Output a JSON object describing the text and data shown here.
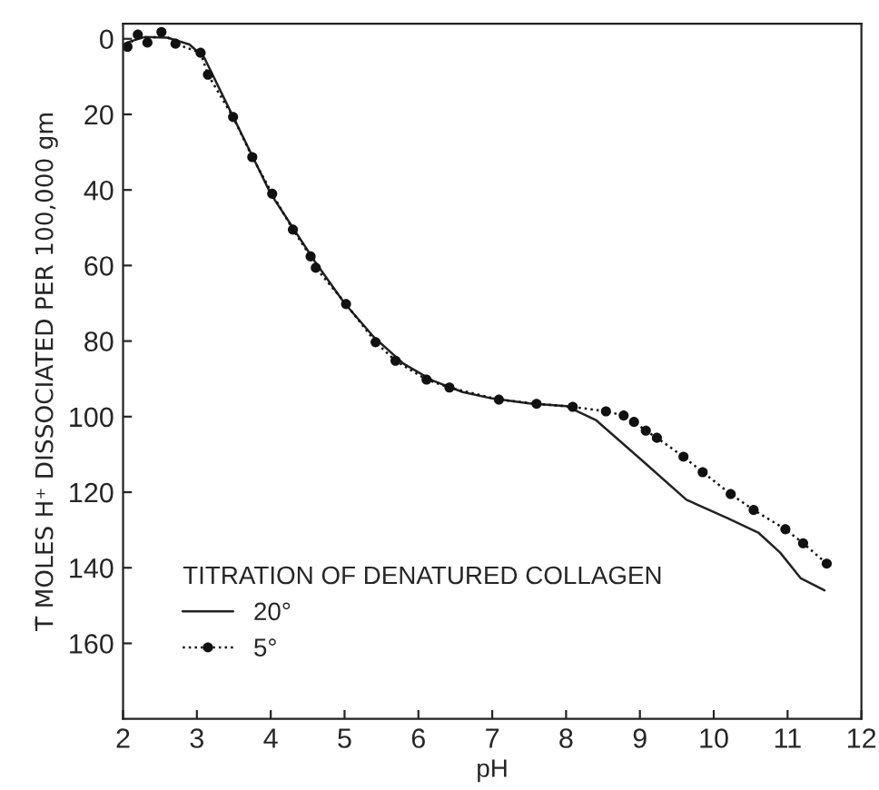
{
  "chart_data": {
    "type": "line",
    "xlabel": "pH",
    "ylabel": "T̄ MOLES H⁺ DISSOCIATED PER 100,000 gm",
    "legend_title": "TITRATION OF DENATURED COLLAGEN",
    "legend": "bottom left",
    "grid": false,
    "xlim": [
      2,
      12
    ],
    "xticks": [
      2,
      3,
      4,
      5,
      6,
      7,
      8,
      9,
      10,
      11,
      12
    ],
    "ylim": [
      180,
      -4
    ],
    "yticks": [
      0,
      20,
      40,
      60,
      80,
      100,
      120,
      140,
      160
    ],
    "series": [
      {
        "name": "20°",
        "color": "#222222",
        "marker": "none",
        "line_style": "solid",
        "x": [
          2.05,
          2.3,
          2.6,
          2.9,
          3.1,
          3.3,
          3.5,
          3.8,
          4.0,
          4.3,
          4.6,
          5.0,
          5.4,
          5.8,
          6.2,
          6.6,
          7.0,
          7.5,
          8.0,
          8.41,
          9.07,
          9.63,
          10.2,
          10.61,
          10.9,
          11.18,
          11.5
        ],
        "values": [
          1,
          -0.5,
          -0.3,
          1.5,
          5,
          13,
          21,
          33,
          41,
          50,
          59,
          70,
          79,
          86,
          90.5,
          93.5,
          95.2,
          96.5,
          97.2,
          101,
          112.3,
          122,
          127,
          130.8,
          136,
          142.8,
          146
        ]
      },
      {
        "name": "5°",
        "color": "#111111",
        "marker": "circle",
        "line_style": "dotted",
        "x": [
          2.06,
          2.2,
          2.33,
          2.52,
          2.71,
          3.05,
          3.15,
          3.49,
          3.75,
          4.02,
          4.3,
          4.54,
          4.61,
          5.02,
          5.42,
          5.69,
          6.11,
          6.42,
          7.09,
          7.6,
          8.09,
          8.54,
          8.78,
          8.92,
          9.08,
          9.23,
          9.59,
          9.85,
          10.23,
          10.54,
          10.97,
          11.21,
          11.53
        ],
        "values": [
          2.1,
          -1.1,
          1,
          -1.8,
          1.3,
          3.7,
          9.5,
          20.7,
          31.3,
          41,
          50.5,
          57.6,
          60.6,
          70.2,
          80.3,
          85.2,
          90.2,
          92.3,
          95.5,
          96.6,
          97.4,
          98.6,
          99.7,
          101.4,
          103.7,
          105.6,
          110.6,
          114.7,
          120.5,
          124.7,
          129.8,
          133.5,
          138.9
        ]
      }
    ]
  }
}
